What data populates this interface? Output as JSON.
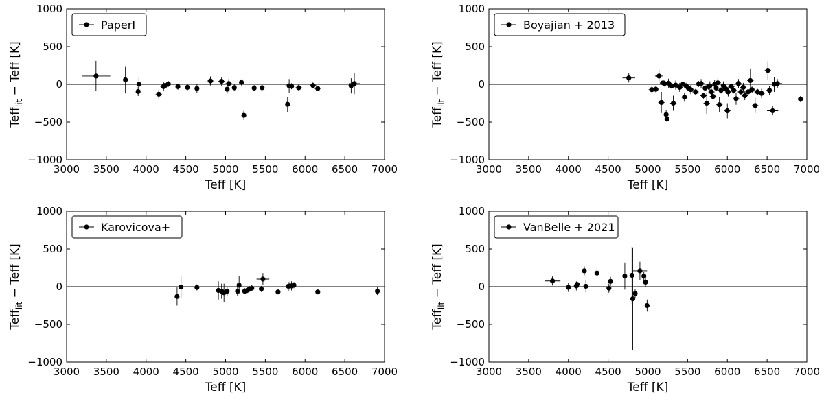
{
  "chart_data": [
    {
      "type": "scatter",
      "legend": "PaperI",
      "xlabel": "Teff  [K]",
      "ylabel": {
        "main": "Teff",
        "sub": "lit",
        "rest": " − Teff  [K]"
      },
      "xlim": [
        3000,
        7000
      ],
      "ylim": [
        -1000,
        1000
      ],
      "xticks": [
        "3000",
        "3500",
        "4000",
        "4500",
        "5000",
        "5500",
        "6000",
        "6500",
        "7000"
      ],
      "yticks": [
        "1000",
        "500",
        "0",
        "−500",
        "−1000"
      ],
      "reference_line": 0,
      "points": [
        {
          "x": 3370,
          "y": 110,
          "xerr": 180,
          "yerr": 200
        },
        {
          "x": 3740,
          "y": 60,
          "xerr": 180,
          "yerr": 180
        },
        {
          "x": 3900,
          "y": -95,
          "xerr": 0,
          "yerr": 60
        },
        {
          "x": 3910,
          "y": 0,
          "xerr": 0,
          "yerr": 90
        },
        {
          "x": 4160,
          "y": -130,
          "xerr": 40,
          "yerr": 60
        },
        {
          "x": 4220,
          "y": -30,
          "xerr": 40,
          "yerr": 60
        },
        {
          "x": 4240,
          "y": -15,
          "xerr": 0,
          "yerr": 100
        },
        {
          "x": 4280,
          "y": 5,
          "xerr": 0,
          "yerr": 40
        },
        {
          "x": 4400,
          "y": -30,
          "xerr": 0,
          "yerr": 40
        },
        {
          "x": 4520,
          "y": -40,
          "xerr": 0,
          "yerr": 40
        },
        {
          "x": 4640,
          "y": -55,
          "xerr": 0,
          "yerr": 60
        },
        {
          "x": 4810,
          "y": 45,
          "xerr": 40,
          "yerr": 60
        },
        {
          "x": 4950,
          "y": 40,
          "xerr": 40,
          "yerr": 60
        },
        {
          "x": 5020,
          "y": -65,
          "xerr": 0,
          "yerr": 60
        },
        {
          "x": 5040,
          "y": 10,
          "xerr": 40,
          "yerr": 60
        },
        {
          "x": 5110,
          "y": -45,
          "xerr": 0,
          "yerr": 40
        },
        {
          "x": 5200,
          "y": 25,
          "xerr": 30,
          "yerr": 40
        },
        {
          "x": 5230,
          "y": -410,
          "xerr": 0,
          "yerr": 60
        },
        {
          "x": 5360,
          "y": -50,
          "xerr": 40,
          "yerr": 40
        },
        {
          "x": 5460,
          "y": -45,
          "xerr": 0,
          "yerr": 30
        },
        {
          "x": 5780,
          "y": -265,
          "xerr": 0,
          "yerr": 100
        },
        {
          "x": 5800,
          "y": -20,
          "xerr": 50,
          "yerr": 90
        },
        {
          "x": 5830,
          "y": -25,
          "xerr": 40,
          "yerr": 40
        },
        {
          "x": 5920,
          "y": -45,
          "xerr": 40,
          "yerr": 40
        },
        {
          "x": 6100,
          "y": -15,
          "xerr": 40,
          "yerr": 40
        },
        {
          "x": 6160,
          "y": -55,
          "xerr": 40,
          "yerr": 30
        },
        {
          "x": 6580,
          "y": -20,
          "xerr": 40,
          "yerr": 100
        },
        {
          "x": 6620,
          "y": 10,
          "xerr": 70,
          "yerr": 140
        }
      ]
    },
    {
      "type": "scatter",
      "legend": "Boyajian + 2013",
      "xlabel": "Teff  [K]",
      "ylabel": {
        "main": "Teff",
        "sub": "lit",
        "rest": " − Teff  [K]"
      },
      "xlim": [
        3000,
        7000
      ],
      "ylim": [
        -1000,
        1000
      ],
      "xticks": [
        "3000",
        "3500",
        "4000",
        "4500",
        "5000",
        "5500",
        "6000",
        "6500",
        "7000"
      ],
      "yticks": [
        "1000",
        "500",
        "0",
        "−500",
        "−1000"
      ],
      "reference_line": 0,
      "points": [
        {
          "x": 4760,
          "y": 85,
          "xerr": 80,
          "yerr": 60
        },
        {
          "x": 5050,
          "y": -70,
          "xerr": 40,
          "yerr": 40
        },
        {
          "x": 5100,
          "y": -65,
          "xerr": 40,
          "yerr": 40
        },
        {
          "x": 5140,
          "y": 110,
          "xerr": 50,
          "yerr": 80
        },
        {
          "x": 5170,
          "y": -240,
          "xerr": 40,
          "yerr": 140
        },
        {
          "x": 5190,
          "y": 20,
          "xerr": 40,
          "yerr": 80
        },
        {
          "x": 5210,
          "y": 10,
          "xerr": 60,
          "yerr": 40
        },
        {
          "x": 5230,
          "y": -400,
          "xerr": 30,
          "yerr": 60
        },
        {
          "x": 5240,
          "y": -460,
          "xerr": 30,
          "yerr": 40
        },
        {
          "x": 5260,
          "y": 15,
          "xerr": 40,
          "yerr": 60
        },
        {
          "x": 5300,
          "y": -20,
          "xerr": 40,
          "yerr": 40
        },
        {
          "x": 5320,
          "y": -250,
          "xerr": 40,
          "yerr": 100
        },
        {
          "x": 5350,
          "y": -10,
          "xerr": 40,
          "yerr": 60
        },
        {
          "x": 5400,
          "y": -40,
          "xerr": 40,
          "yerr": 60
        },
        {
          "x": 5440,
          "y": 0,
          "xerr": 30,
          "yerr": 80
        },
        {
          "x": 5460,
          "y": -170,
          "xerr": 40,
          "yerr": 60
        },
        {
          "x": 5480,
          "y": -20,
          "xerr": 40,
          "yerr": 40
        },
        {
          "x": 5510,
          "y": -50,
          "xerr": 40,
          "yerr": 40
        },
        {
          "x": 5540,
          "y": -70,
          "xerr": 40,
          "yerr": 60
        },
        {
          "x": 5600,
          "y": -100,
          "xerr": 40,
          "yerr": 40
        },
        {
          "x": 5640,
          "y": 5,
          "xerr": 40,
          "yerr": 40
        },
        {
          "x": 5670,
          "y": 10,
          "xerr": 40,
          "yerr": 60
        },
        {
          "x": 5700,
          "y": -150,
          "xerr": 40,
          "yerr": 40
        },
        {
          "x": 5720,
          "y": -50,
          "xerr": 40,
          "yerr": 40
        },
        {
          "x": 5740,
          "y": -250,
          "xerr": 40,
          "yerr": 140
        },
        {
          "x": 5760,
          "y": -30,
          "xerr": 40,
          "yerr": 40
        },
        {
          "x": 5780,
          "y": -20,
          "xerr": 40,
          "yerr": 60
        },
        {
          "x": 5800,
          "y": -100,
          "xerr": 40,
          "yerr": 40
        },
        {
          "x": 5820,
          "y": -160,
          "xerr": 40,
          "yerr": 80
        },
        {
          "x": 5840,
          "y": 0,
          "xerr": 40,
          "yerr": 60
        },
        {
          "x": 5860,
          "y": -50,
          "xerr": 40,
          "yerr": 40
        },
        {
          "x": 5880,
          "y": 20,
          "xerr": 40,
          "yerr": 60
        },
        {
          "x": 5900,
          "y": -270,
          "xerr": 40,
          "yerr": 100
        },
        {
          "x": 5920,
          "y": -80,
          "xerr": 40,
          "yerr": 40
        },
        {
          "x": 5950,
          "y": -20,
          "xerr": 40,
          "yerr": 60
        },
        {
          "x": 5980,
          "y": -60,
          "xerr": 40,
          "yerr": 40
        },
        {
          "x": 6000,
          "y": -350,
          "xerr": 40,
          "yerr": 100
        },
        {
          "x": 6010,
          "y": -100,
          "xerr": 40,
          "yerr": 60
        },
        {
          "x": 6050,
          "y": -30,
          "xerr": 40,
          "yerr": 40
        },
        {
          "x": 6080,
          "y": -80,
          "xerr": 40,
          "yerr": 40
        },
        {
          "x": 6110,
          "y": -190,
          "xerr": 40,
          "yerr": 80
        },
        {
          "x": 6140,
          "y": 10,
          "xerr": 40,
          "yerr": 60
        },
        {
          "x": 6170,
          "y": -100,
          "xerr": 40,
          "yerr": 40
        },
        {
          "x": 6200,
          "y": -40,
          "xerr": 40,
          "yerr": 60
        },
        {
          "x": 6220,
          "y": -150,
          "xerr": 40,
          "yerr": 60
        },
        {
          "x": 6260,
          "y": -100,
          "xerr": 40,
          "yerr": 40
        },
        {
          "x": 6290,
          "y": 50,
          "xerr": 40,
          "yerr": 160
        },
        {
          "x": 6310,
          "y": -70,
          "xerr": 40,
          "yerr": 40
        },
        {
          "x": 6350,
          "y": -280,
          "xerr": 40,
          "yerr": 100
        },
        {
          "x": 6380,
          "y": -100,
          "xerr": 40,
          "yerr": 40
        },
        {
          "x": 6430,
          "y": -120,
          "xerr": 40,
          "yerr": 60
        },
        {
          "x": 6510,
          "y": 185,
          "xerr": 40,
          "yerr": 120
        },
        {
          "x": 6530,
          "y": -80,
          "xerr": 40,
          "yerr": 60
        },
        {
          "x": 6570,
          "y": -350,
          "xerr": 70,
          "yerr": 60
        },
        {
          "x": 6590,
          "y": 0,
          "xerr": 40,
          "yerr": 100
        },
        {
          "x": 6630,
          "y": 10,
          "xerr": 60,
          "yerr": 60
        },
        {
          "x": 6920,
          "y": -195,
          "xerr": 40,
          "yerr": 40
        }
      ]
    },
    {
      "type": "scatter",
      "legend": "Karovicova+",
      "xlabel": "Teff  [K]",
      "ylabel": {
        "main": "Teff",
        "sub": "lit",
        "rest": " − Teff  [K]"
      },
      "xlim": [
        3000,
        7000
      ],
      "ylim": [
        -1000,
        1000
      ],
      "xticks": [
        "3000",
        "3500",
        "4000",
        "4500",
        "5000",
        "5500",
        "6000",
        "6500",
        "7000"
      ],
      "yticks": [
        "1000",
        "500",
        "0",
        "−500",
        "−1000"
      ],
      "reference_line": 0,
      "points": [
        {
          "x": 4390,
          "y": -130,
          "xerr": 0,
          "yerr": 120
        },
        {
          "x": 4440,
          "y": -5,
          "xerr": 0,
          "yerr": 140
        },
        {
          "x": 4640,
          "y": -10,
          "xerr": 0,
          "yerr": 40
        },
        {
          "x": 4910,
          "y": -50,
          "xerr": 0,
          "yerr": 120
        },
        {
          "x": 4950,
          "y": -60,
          "xerr": 0,
          "yerr": 100
        },
        {
          "x": 4980,
          "y": -80,
          "xerr": 0,
          "yerr": 120
        },
        {
          "x": 5020,
          "y": -60,
          "xerr": 0,
          "yerr": 60
        },
        {
          "x": 5150,
          "y": -60,
          "xerr": 0,
          "yerr": 60
        },
        {
          "x": 5170,
          "y": 20,
          "xerr": 0,
          "yerr": 120
        },
        {
          "x": 5240,
          "y": -60,
          "xerr": 0,
          "yerr": 40
        },
        {
          "x": 5270,
          "y": -50,
          "xerr": 0,
          "yerr": 40
        },
        {
          "x": 5300,
          "y": -30,
          "xerr": 0,
          "yerr": 40
        },
        {
          "x": 5330,
          "y": -20,
          "xerr": 0,
          "yerr": 40
        },
        {
          "x": 5450,
          "y": -30,
          "xerr": 0,
          "yerr": 40
        },
        {
          "x": 5470,
          "y": 100,
          "xerr": 80,
          "yerr": 80
        },
        {
          "x": 5660,
          "y": -70,
          "xerr": 0,
          "yerr": 30
        },
        {
          "x": 5790,
          "y": 5,
          "xerr": 0,
          "yerr": 60
        },
        {
          "x": 5810,
          "y": 10,
          "xerr": 40,
          "yerr": 60
        },
        {
          "x": 5830,
          "y": 10,
          "xerr": 0,
          "yerr": 60
        },
        {
          "x": 5860,
          "y": 20,
          "xerr": 0,
          "yerr": 40
        },
        {
          "x": 6160,
          "y": -70,
          "xerr": 0,
          "yerr": 30
        },
        {
          "x": 6910,
          "y": -60,
          "xerr": 0,
          "yerr": 50
        }
      ]
    },
    {
      "type": "scatter",
      "legend": "VanBelle + 2021",
      "xlabel": "Teff  [K]",
      "ylabel": {
        "main": "Teff",
        "sub": "lit",
        "rest": " − Teff  [K]"
      },
      "xlim": [
        3000,
        7000
      ],
      "ylim": [
        -1000,
        1000
      ],
      "xticks": [
        "3000",
        "3500",
        "4000",
        "4500",
        "5000",
        "5500",
        "6000",
        "6500",
        "7000"
      ],
      "yticks": [
        "1000",
        "500",
        "0",
        "−500",
        "−1000"
      ],
      "reference_line": 0,
      "points": [
        {
          "x": 3800,
          "y": 75,
          "xerr": 100,
          "yerr": 60
        },
        {
          "x": 4000,
          "y": -10,
          "xerr": 0,
          "yerr": 60
        },
        {
          "x": 4100,
          "y": 10,
          "xerr": 0,
          "yerr": 60
        },
        {
          "x": 4110,
          "y": 30,
          "xerr": 0,
          "yerr": 40
        },
        {
          "x": 4200,
          "y": 210,
          "xerr": 0,
          "yerr": 60
        },
        {
          "x": 4220,
          "y": 5,
          "xerr": 0,
          "yerr": 80
        },
        {
          "x": 4360,
          "y": 180,
          "xerr": 0,
          "yerr": 80
        },
        {
          "x": 4510,
          "y": -20,
          "xerr": 0,
          "yerr": 60
        },
        {
          "x": 4530,
          "y": 70,
          "xerr": 0,
          "yerr": 60
        },
        {
          "x": 4710,
          "y": 140,
          "xerr": 0,
          "yerr": 180
        },
        {
          "x": 4800,
          "y": 150,
          "xerr": 0,
          "yerr": 380
        },
        {
          "x": 4810,
          "y": -160,
          "xerr": 0,
          "yerr": 680
        },
        {
          "x": 4840,
          "y": -90,
          "xerr": 0,
          "yerr": 60
        },
        {
          "x": 4900,
          "y": 210,
          "xerr": 90,
          "yerr": 120
        },
        {
          "x": 4950,
          "y": 140,
          "xerr": 0,
          "yerr": 60
        },
        {
          "x": 4970,
          "y": 60,
          "xerr": 0,
          "yerr": 60
        },
        {
          "x": 4990,
          "y": -250,
          "xerr": 0,
          "yerr": 80
        }
      ]
    }
  ]
}
